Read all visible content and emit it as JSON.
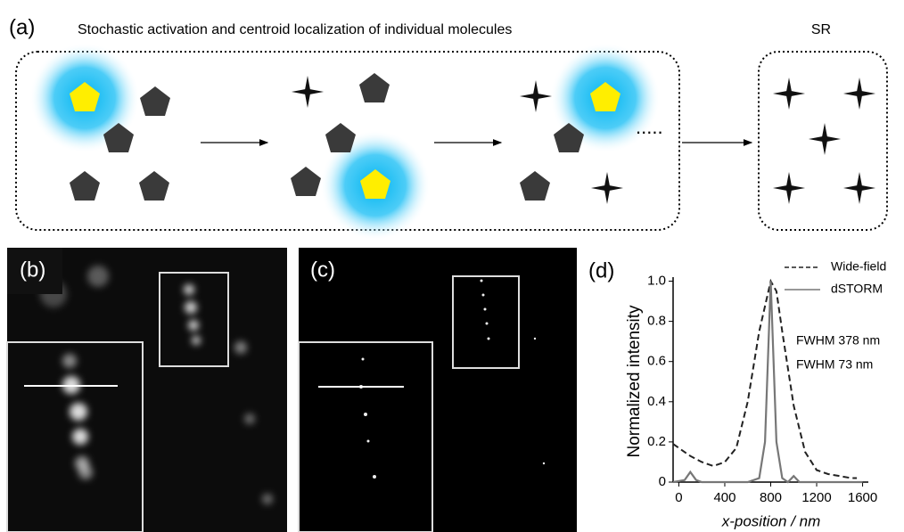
{
  "panel_a": {
    "label": "(a)",
    "title": "Stochastic activation and centroid localization of individual molecules",
    "dots": ".....",
    "sr_label": "SR"
  },
  "panel_b": {
    "label": "(b)"
  },
  "panel_c": {
    "label": "(c)"
  },
  "chart_data": {
    "type": "line",
    "panel_label": "(d)",
    "xlabel": "x-position / nm",
    "ylabel": "Normalized intensity",
    "xlim": [
      -50,
      1650
    ],
    "ylim": [
      0,
      1.02
    ],
    "xticks": [
      0,
      400,
      800,
      1200,
      1600
    ],
    "yticks": [
      0,
      0.2,
      0.4,
      0.6,
      0.8,
      {
        "value": 1,
        "label": "1.0"
      }
    ],
    "legend": "upper right",
    "series": [
      {
        "name": "Wide-field",
        "color": "#222222",
        "dash": true,
        "x": [
          -50,
          0,
          100,
          200,
          300,
          400,
          500,
          600,
          700,
          800,
          850,
          900,
          1000,
          1100,
          1200,
          1300,
          1400,
          1500,
          1550
        ],
        "values": [
          0.19,
          0.17,
          0.13,
          0.1,
          0.08,
          0.1,
          0.17,
          0.4,
          0.75,
          1.0,
          0.95,
          0.75,
          0.38,
          0.15,
          0.06,
          0.04,
          0.03,
          0.02,
          0.02
        ]
      },
      {
        "name": "dSTORM",
        "color": "#777777",
        "dash": false,
        "x": [
          -50,
          50,
          100,
          150,
          200,
          600,
          700,
          750,
          800,
          850,
          900,
          950,
          1000,
          1050,
          1600
        ],
        "values": [
          0,
          0.01,
          0.05,
          0.01,
          0,
          0,
          0.02,
          0.2,
          1.0,
          0.2,
          0.02,
          0,
          0.03,
          0,
          0
        ]
      }
    ],
    "annotations": [
      "FWHM 378 nm",
      "FWHM 73 nm"
    ]
  }
}
